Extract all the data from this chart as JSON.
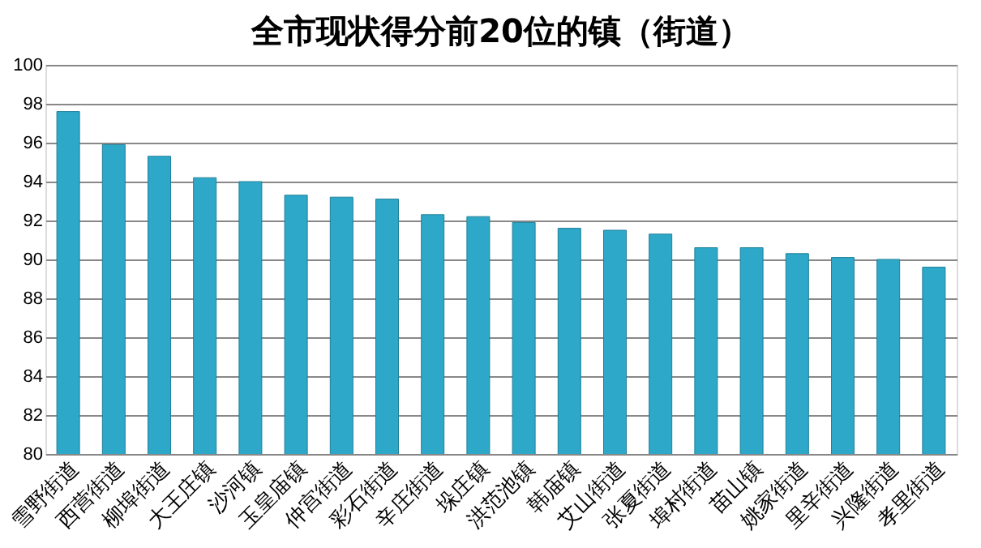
{
  "chart_data": {
    "type": "bar",
    "title": "全市现状得分前20位的镇（街道）",
    "categories": [
      "雪野街道",
      "西营街道",
      "柳埠街道",
      "大王庄镇",
      "沙河镇",
      "玉皇庙镇",
      "仲宫街道",
      "彩石街道",
      "辛庄街道",
      "垛庄镇",
      "洪范池镇",
      "韩庙镇",
      "艾山街道",
      "张夏街道",
      "埠村街道",
      "苗山镇",
      "姚家街道",
      "里辛街道",
      "兴隆街道",
      "孝里街道"
    ],
    "values": [
      97.6,
      95.9,
      95.3,
      94.2,
      94.0,
      93.3,
      93.2,
      93.1,
      92.3,
      92.2,
      91.9,
      91.6,
      91.5,
      91.3,
      90.6,
      90.6,
      90.3,
      90.1,
      90.0,
      89.6
    ],
    "color": "#2ea8c8",
    "ylim": [
      80,
      100
    ],
    "yticks": [
      80,
      82,
      84,
      86,
      88,
      90,
      92,
      94,
      96,
      98,
      100
    ],
    "grid": "y"
  }
}
